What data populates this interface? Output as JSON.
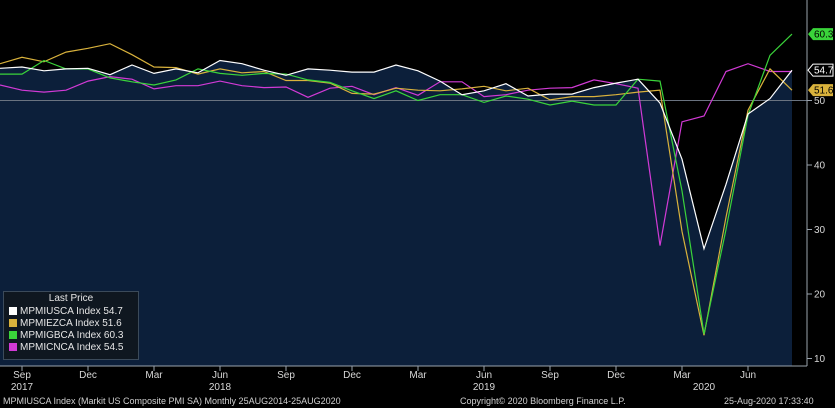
{
  "chart_data": {
    "type": "line",
    "x": [
      "2017-08",
      "2017-09",
      "2017-10",
      "2017-11",
      "2017-12",
      "2018-01",
      "2018-02",
      "2018-03",
      "2018-04",
      "2018-05",
      "2018-06",
      "2018-07",
      "2018-08",
      "2018-09",
      "2018-10",
      "2018-11",
      "2018-12",
      "2019-01",
      "2019-02",
      "2019-03",
      "2019-04",
      "2019-05",
      "2019-06",
      "2019-07",
      "2019-08",
      "2019-09",
      "2019-10",
      "2019-11",
      "2019-12",
      "2020-01",
      "2020-02",
      "2020-03",
      "2020-04",
      "2020-05",
      "2020-06",
      "2020-07",
      "2020-08"
    ],
    "series": [
      {
        "name": "MPMIUSCA Index",
        "color": "#ffffff",
        "values": [
          55.0,
          55.2,
          54.6,
          54.9,
          55.0,
          54.0,
          55.5,
          54.2,
          54.9,
          54.3,
          56.2,
          55.7,
          54.7,
          53.9,
          54.9,
          54.7,
          54.4,
          54.4,
          55.5,
          54.6,
          53.0,
          50.9,
          51.5,
          52.6,
          50.7,
          51.0,
          51.0,
          52.0,
          52.7,
          53.3,
          49.6,
          40.9,
          27.0,
          37.0,
          47.9,
          50.3,
          54.7
        ]
      },
      {
        "name": "MPMIEZCA Index",
        "color": "#d9b23c",
        "values": [
          55.7,
          56.7,
          56.0,
          57.5,
          58.1,
          58.8,
          57.1,
          55.2,
          55.1,
          54.1,
          54.9,
          54.3,
          54.5,
          53.1,
          53.1,
          52.7,
          51.1,
          51.0,
          51.9,
          51.6,
          51.5,
          51.8,
          52.2,
          51.5,
          51.9,
          50.1,
          50.6,
          50.6,
          50.9,
          51.3,
          51.6,
          29.7,
          13.6,
          31.9,
          48.5,
          54.9,
          51.6
        ]
      },
      {
        "name": "MPMIGBCA Index",
        "color": "#3ad43a",
        "values": [
          54.1,
          54.1,
          56.2,
          54.9,
          54.9,
          53.5,
          52.9,
          52.4,
          53.2,
          54.9,
          54.2,
          53.9,
          54.2,
          54.1,
          53.2,
          52.8,
          51.5,
          50.3,
          51.5,
          50.0,
          50.9,
          50.9,
          49.7,
          50.7,
          50.2,
          49.3,
          49.9,
          49.3,
          49.3,
          53.3,
          53.0,
          36.0,
          13.8,
          30.0,
          47.7,
          57.0,
          60.3
        ]
      },
      {
        "name": "MPMICNCA Index",
        "color": "#d23ad6",
        "values": [
          52.4,
          51.6,
          51.3,
          51.6,
          53.0,
          53.7,
          53.3,
          51.8,
          52.3,
          52.3,
          53.0,
          52.3,
          52.0,
          52.1,
          50.5,
          51.9,
          52.2,
          50.9,
          52.0,
          50.8,
          52.9,
          52.9,
          50.6,
          50.9,
          51.6,
          51.9,
          52.0,
          53.2,
          52.6,
          51.9,
          27.5,
          46.7,
          47.6,
          54.5,
          55.7,
          54.5,
          54.5
        ]
      }
    ],
    "last_price": [
      {
        "name": "MPMIUSCA Index",
        "value": "54.7"
      },
      {
        "name": "MPMIEZCA Index",
        "value": "51.6"
      },
      {
        "name": "MPMIGBCA Index",
        "value": "60.3"
      },
      {
        "name": "MPMICNCA Index",
        "value": "54.5"
      }
    ],
    "y_ticks": [
      10,
      20,
      30,
      40,
      50
    ],
    "ylim": [
      8.5,
      62.7
    ],
    "x_ticks": [
      {
        "x": "2017-09",
        "label": "Sep"
      },
      {
        "x": "2017-12",
        "label": "Dec"
      },
      {
        "x": "2018-03",
        "label": "Mar"
      },
      {
        "x": "2018-06",
        "label": "Jun"
      },
      {
        "x": "2018-09",
        "label": "Sep"
      },
      {
        "x": "2018-12",
        "label": "Dec"
      },
      {
        "x": "2019-03",
        "label": "Mar"
      },
      {
        "x": "2019-06",
        "label": "Jun"
      },
      {
        "x": "2019-09",
        "label": "Sep"
      },
      {
        "x": "2019-12",
        "label": "Dec"
      },
      {
        "x": "2020-03",
        "label": "Mar"
      },
      {
        "x": "2020-06",
        "label": "Jun"
      }
    ],
    "years": [
      {
        "x": "2017-09",
        "label": "2017"
      },
      {
        "x": "2018-06",
        "label": "2018"
      },
      {
        "x": "2019-06",
        "label": "2019"
      },
      {
        "x": "2020-04",
        "label": "2020"
      }
    ],
    "reference_line": 50,
    "legend_title": "Last Price",
    "legend_position": "bottom-left",
    "plot_fill_color": "#0c1f3a",
    "grid": false
  },
  "footer": {
    "left": "MPMIUSCA Index (Markit US Composite PMI SA)  Monthly 25AUG2014-25AUG2020",
    "center": "Copyright© 2020 Bloomberg Finance L.P.",
    "right": "25-Aug-2020 17:33:40"
  }
}
